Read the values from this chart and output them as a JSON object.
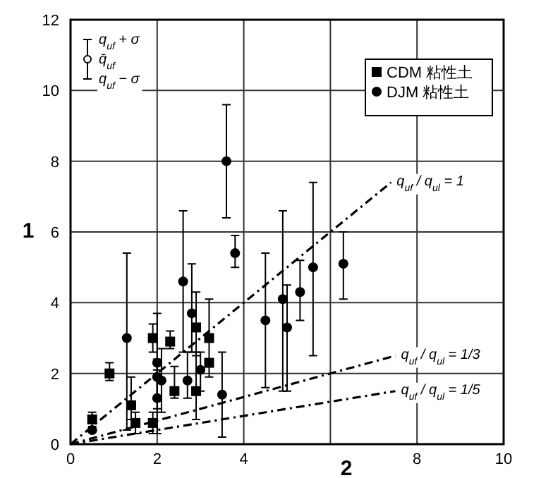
{
  "chart_data": {
    "type": "scatter",
    "xlabel": "2",
    "ylabel": "1",
    "xlim": [
      0,
      10
    ],
    "ylim": [
      0,
      12
    ],
    "xticks": [
      0,
      2,
      4,
      {
        "value": 6,
        "label": null
      },
      8,
      10
    ],
    "yticks": [
      0,
      2,
      4,
      6,
      8,
      10,
      12
    ],
    "grid": true,
    "legend": "top right",
    "series": [
      {
        "name": "CDM 粘性土",
        "color": "#000000",
        "marker": "square",
        "x": [
          0.5,
          0.9,
          1.4,
          1.5,
          1.9,
          1.9,
          2.3,
          2.4,
          2.9,
          2.9,
          3.2,
          3.2
        ],
        "values": [
          0.7,
          2.0,
          1.1,
          0.6,
          3.0,
          0.6,
          2.9,
          1.5,
          3.3,
          1.5,
          3.0,
          2.3
        ],
        "errors": [
          [
            0.5,
            0.9
          ],
          [
            1.8,
            2.3
          ],
          [
            0.7,
            1.9
          ],
          [
            0.3,
            0.9
          ],
          [
            2.6,
            3.4
          ],
          [
            0.3,
            0.9
          ],
          [
            2.7,
            3.2
          ],
          [
            1.3,
            2.2
          ],
          [
            2.5,
            4.3
          ],
          [
            0.7,
            2.6
          ],
          [
            1.9,
            4.1
          ],
          null
        ]
      },
      {
        "name": "DJM 粘性土",
        "color": "#000000",
        "marker": "circle",
        "x": [
          0.5,
          1.3,
          2.0,
          2.0,
          2.0,
          2.1,
          2.6,
          2.7,
          2.8,
          3.0,
          3.5,
          3.6,
          3.8,
          4.5,
          4.9,
          5.0,
          5.3,
          5.6,
          6.3
        ],
        "values": [
          0.4,
          3.0,
          1.9,
          1.3,
          2.3,
          1.8,
          4.6,
          1.8,
          3.7,
          2.1,
          1.4,
          8.0,
          5.4,
          3.5,
          4.1,
          3.3,
          4.3,
          5.0,
          5.1
        ],
        "errors": [
          null,
          [
            0.4,
            5.4
          ],
          [
            1.3,
            2.4
          ],
          [
            0.3,
            2.1
          ],
          [
            1.0,
            3.7
          ],
          [
            0.9,
            2.7
          ],
          [
            2.6,
            6.6
          ],
          [
            1.3,
            2.6
          ],
          [
            2.6,
            5.1
          ],
          [
            1.5,
            2.6
          ],
          [
            0.2,
            2.6
          ],
          [
            6.4,
            9.6
          ],
          [
            5.0,
            5.9
          ],
          [
            1.6,
            5.4
          ],
          [
            1.5,
            6.6
          ],
          [
            1.5,
            4.5
          ],
          [
            3.5,
            5.2
          ],
          [
            2.5,
            7.4
          ],
          [
            4.1,
            6.0
          ]
        ]
      },
      {
        "name": "q$_{uf}$ / q$_{ul}$ = 1",
        "type": "line",
        "color": "#000000",
        "line_style": "dashed",
        "x": [
          0,
          7.4
        ],
        "values": [
          0,
          7.4
        ]
      },
      {
        "name": "q$_{uf}$ / q$_{ul}$ = 1/3",
        "type": "line",
        "color": "#000000",
        "line_style": "dashed",
        "x": [
          0,
          7.5
        ],
        "values": [
          0,
          2.5
        ]
      },
      {
        "name": "q$_{uf}$ / q$_{ul}$ = 1/5",
        "type": "line",
        "color": "#000000",
        "line_style": "dashed",
        "x": [
          0,
          7.5
        ],
        "values": [
          0,
          1.5
        ]
      }
    ],
    "annotations": [
      "q$_{uf}$ + σ",
      "q̄$_{uf}$",
      "q$_{uf}$ − σ"
    ]
  }
}
